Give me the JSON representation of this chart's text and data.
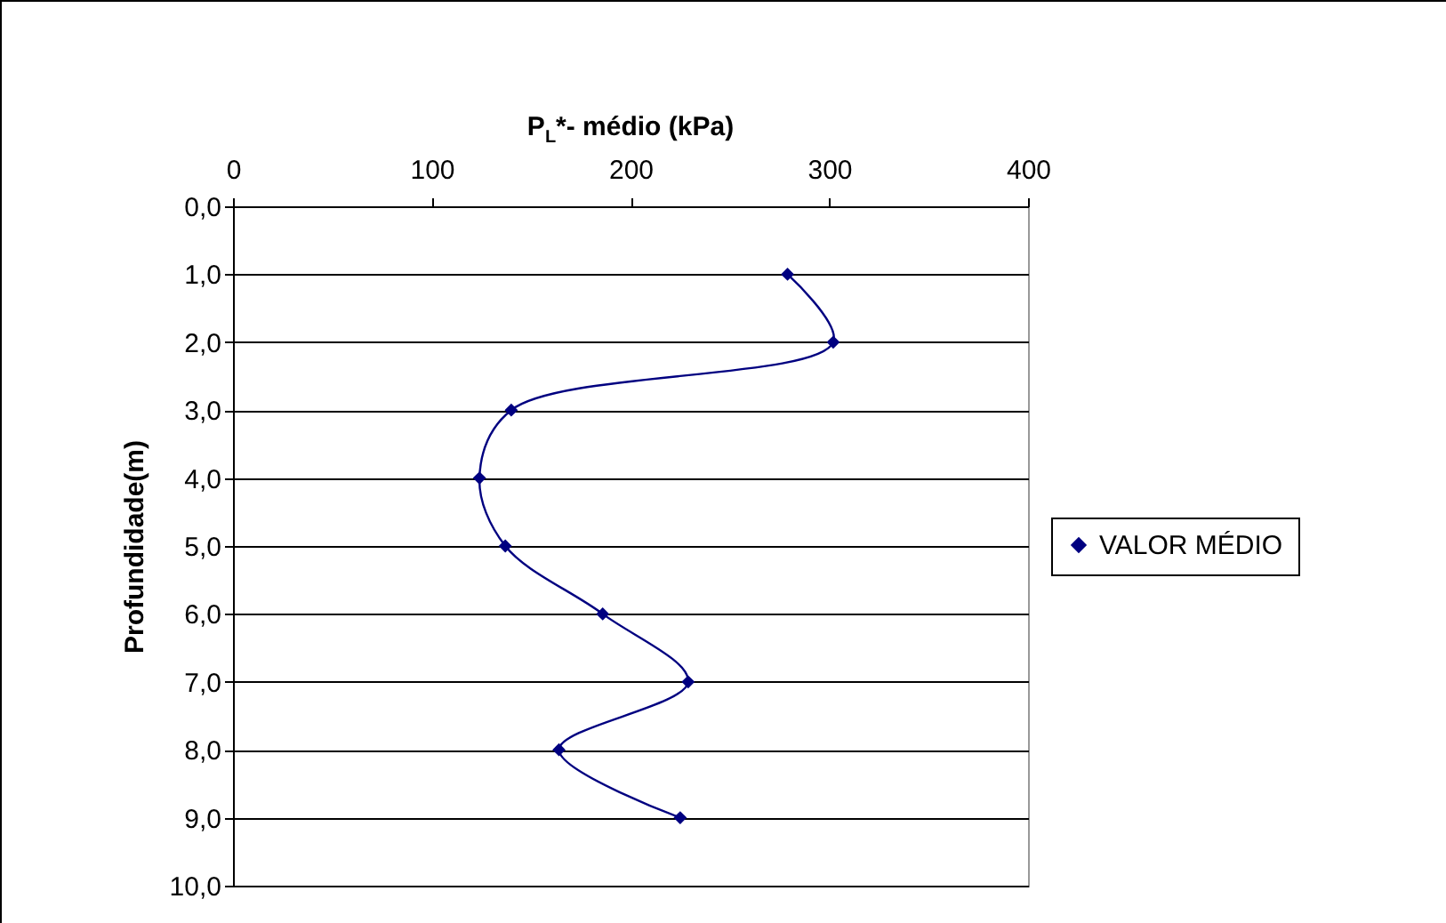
{
  "chart_data": {
    "type": "line",
    "xlabel": "P$_{L}$*- médio (kPa)",
    "ylabel": "Profundidade(m)",
    "xlim": [
      0,
      400
    ],
    "xticks": [
      0,
      100,
      200,
      300,
      400
    ],
    "ylim": [
      10,
      0
    ],
    "yticks": [
      {
        "value": 0,
        "label": "0,0"
      },
      {
        "value": 1,
        "label": "1,0"
      },
      {
        "value": 2,
        "label": "2,0"
      },
      {
        "value": 3,
        "label": "3,0"
      },
      {
        "value": 4,
        "label": "4,0"
      },
      {
        "value": 5,
        "label": "5,0"
      },
      {
        "value": 6,
        "label": "6,0"
      },
      {
        "value": 7,
        "label": "7,0"
      },
      {
        "value": 8,
        "label": "8,0"
      },
      {
        "value": 9,
        "label": "9,0"
      },
      {
        "value": 10,
        "label": "10,0"
      }
    ],
    "grid": "y",
    "legend": "right",
    "marker": "diamond",
    "series": [
      {
        "name": "VALOR MÉDIO",
        "color": "#000080",
        "x": [
          279,
          302,
          140,
          124,
          137,
          186,
          229,
          164,
          225
        ],
        "values": [
          1,
          2,
          3,
          4,
          5,
          6,
          7,
          8,
          9
        ]
      }
    ]
  }
}
